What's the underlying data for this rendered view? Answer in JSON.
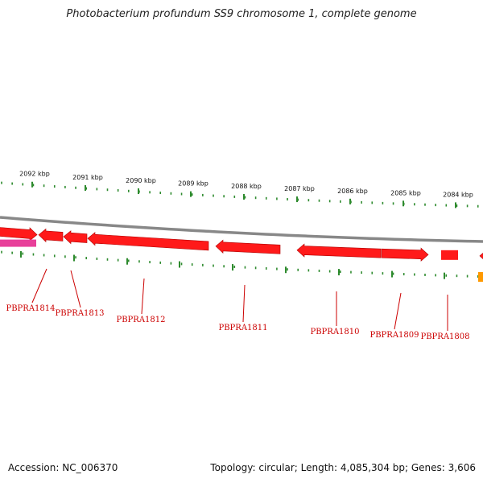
{
  "title": "Photobacterium profundum SS9 chromosome 1, complete genome",
  "footer": {
    "accession": "Accession: NC_006370",
    "summary": "Topology: circular; Length: 4,085,304 bp; Genes: 3,606"
  },
  "colors": {
    "backbone": "#888888",
    "ticks": "#2e8b2e",
    "gene_red": "#ff1a1a",
    "gene_pink": "#e8409a",
    "gene_orange": "#ff9900",
    "label_red": "#cc0000"
  },
  "kbp_labels": [
    "2092 kbp",
    "2091 kbp",
    "2090 kbp",
    "2089 kbp",
    "2088 kbp",
    "2087 kbp",
    "2086 kbp",
    "2085 kbp",
    "2084 kbp"
  ],
  "gene_labels": [
    "PBPRA1814",
    "PBPRA1813",
    "PBPRA1812",
    "PBPRA1811",
    "PBPRA1810",
    "PBPRA1809",
    "PBPRA1808"
  ]
}
